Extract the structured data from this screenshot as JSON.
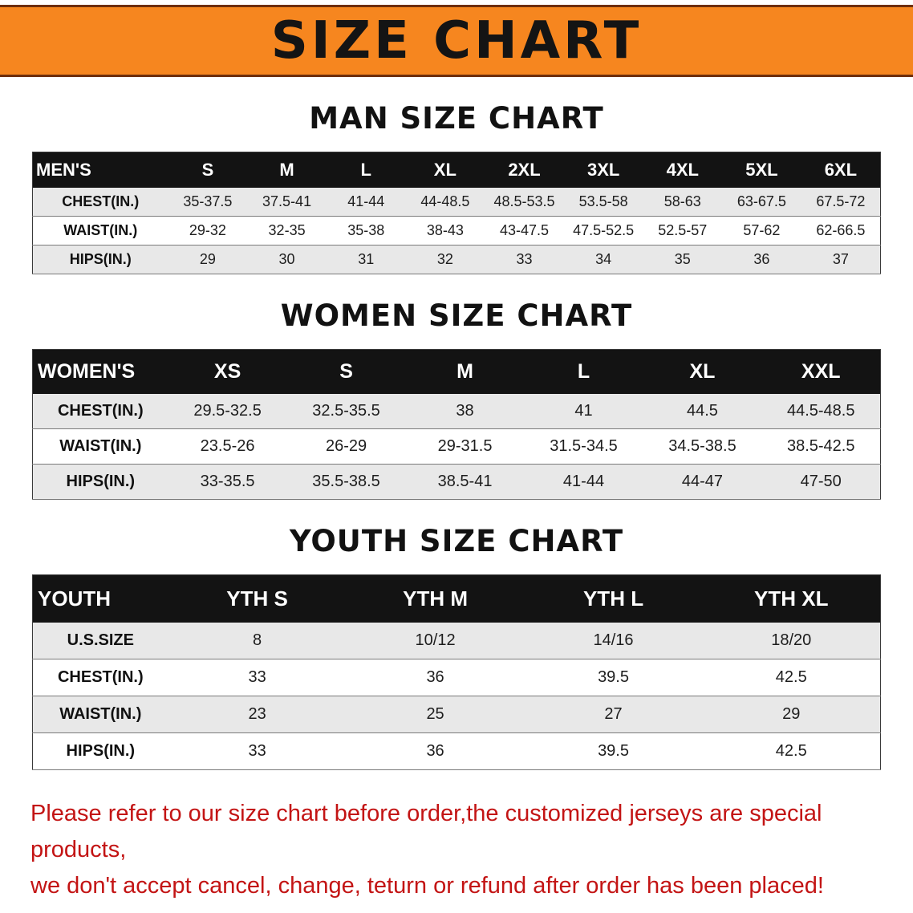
{
  "banner": {
    "title": "SIZE CHART",
    "bg_color": "#f6861f",
    "edge_color": "#6e2e0b"
  },
  "sections": [
    {
      "heading": "MAN SIZE CHART",
      "table": {
        "header": [
          "MEN'S",
          "S",
          "M",
          "L",
          "XL",
          "2XL",
          "3XL",
          "4XL",
          "5XL",
          "6XL"
        ],
        "rows": [
          [
            "CHEST(IN.)",
            "35-37.5",
            "37.5-41",
            "41-44",
            "44-48.5",
            "48.5-53.5",
            "53.5-58",
            "58-63",
            "63-67.5",
            "67.5-72"
          ],
          [
            "WAIST(IN.)",
            "29-32",
            "32-35",
            "35-38",
            "38-43",
            "43-47.5",
            "47.5-52.5",
            "52.5-57",
            "57-62",
            "62-66.5"
          ],
          [
            "HIPS(IN.)",
            "29",
            "30",
            "31",
            "32",
            "33",
            "34",
            "35",
            "36",
            "37"
          ]
        ]
      }
    },
    {
      "heading": "WOMEN SIZE CHART",
      "table": {
        "header": [
          "WOMEN'S",
          "XS",
          "S",
          "M",
          "L",
          "XL",
          "XXL"
        ],
        "rows": [
          [
            "CHEST(IN.)",
            "29.5-32.5",
            "32.5-35.5",
            "38",
            "41",
            "44.5",
            "44.5-48.5"
          ],
          [
            "WAIST(IN.)",
            "23.5-26",
            "26-29",
            "29-31.5",
            "31.5-34.5",
            "34.5-38.5",
            "38.5-42.5"
          ],
          [
            "HIPS(IN.)",
            "33-35.5",
            "35.5-38.5",
            "38.5-41",
            "41-44",
            "44-47",
            "47-50"
          ]
        ]
      }
    },
    {
      "heading": "YOUTH SIZE CHART",
      "table": {
        "header": [
          "YOUTH",
          "YTH S",
          "YTH M",
          "YTH L",
          "YTH XL"
        ],
        "rows": [
          [
            "U.S.SIZE",
            "8",
            "10/12",
            "14/16",
            "18/20"
          ],
          [
            "CHEST(IN.)",
            "33",
            "36",
            "39.5",
            "42.5"
          ],
          [
            "WAIST(IN.)",
            "23",
            "25",
            "27",
            "29"
          ],
          [
            "HIPS(IN.)",
            "33",
            "36",
            "39.5",
            "42.5"
          ]
        ]
      }
    }
  ],
  "footer": {
    "line1": "Please refer to our size chart before order,the customized jerseys are special products,",
    "line2": "we don't accept cancel, change, teturn or refund after order has been placed!",
    "text_color": "#c31414"
  }
}
